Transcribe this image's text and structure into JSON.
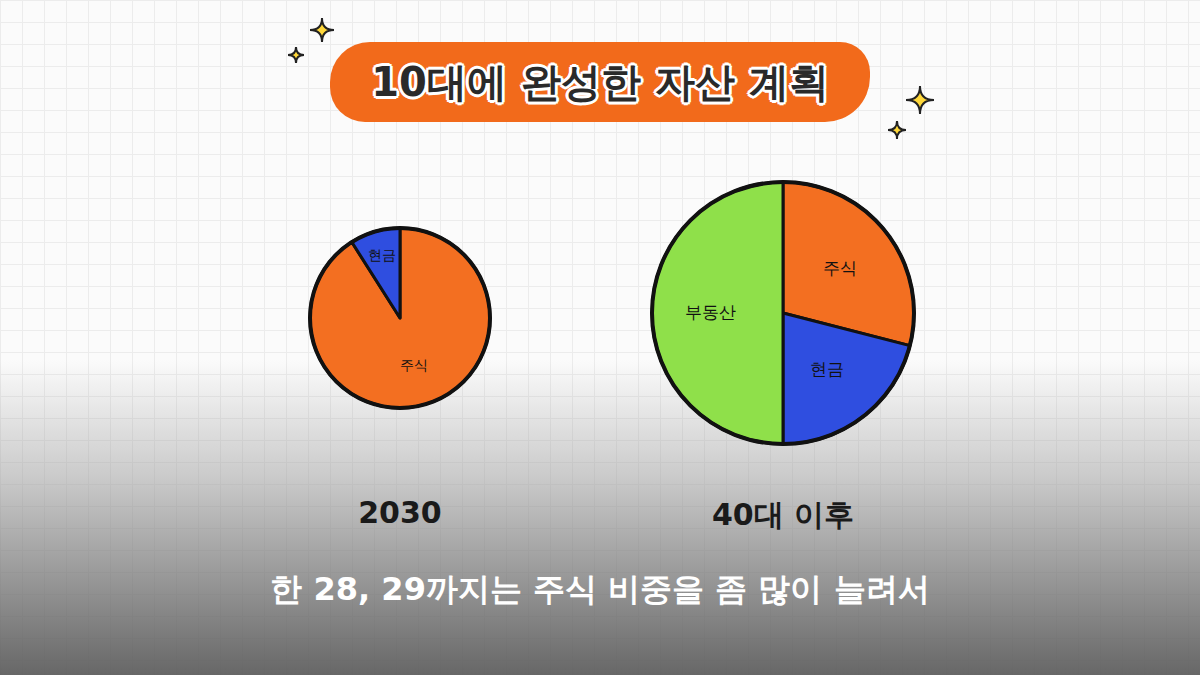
{
  "title": "10대에 완성한 자산 계획",
  "caption": "한 28, 29까지는 주식 비중을 좀 많이 늘려서",
  "chart_data": [
    {
      "type": "pie",
      "title": "2030",
      "categories": [
        "주식",
        "현금"
      ],
      "values": [
        91,
        9
      ],
      "colors": [
        "#f36f21",
        "#2f4ee0"
      ],
      "data_labels": false
    },
    {
      "type": "pie",
      "title": "40대 이후",
      "categories": [
        "주식",
        "현금",
        "부동산"
      ],
      "values": [
        29,
        21,
        50
      ],
      "colors": [
        "#f36f21",
        "#2f4ee0",
        "#8fe04a"
      ],
      "data_labels": false
    }
  ]
}
